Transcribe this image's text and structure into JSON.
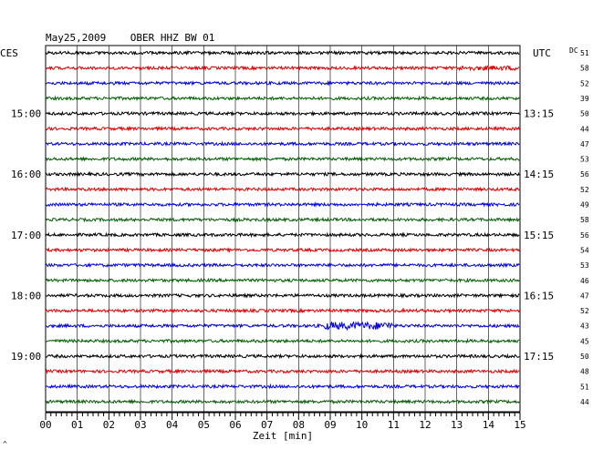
{
  "chart_data": {
    "type": "line",
    "title": "May25,2009    OBER HHZ BW 01",
    "left_timezone": "CES",
    "right_timezone": "UTC",
    "xlabel": "Zeit [min]",
    "xlim": [
      0,
      15
    ],
    "x_ticks": [
      "00",
      "01",
      "02",
      "03",
      "04",
      "05",
      "06",
      "07",
      "08",
      "09",
      "10",
      "11",
      "12",
      "13",
      "14",
      "15"
    ],
    "left_time_labels": [
      {
        "row": 4,
        "text": "15:00"
      },
      {
        "row": 8,
        "text": "16:00"
      },
      {
        "row": 12,
        "text": "17:00"
      },
      {
        "row": 16,
        "text": "18:00"
      },
      {
        "row": 20,
        "text": "19:00"
      }
    ],
    "right_time_labels": [
      {
        "row": 4,
        "text": "13:15"
      },
      {
        "row": 8,
        "text": "14:15"
      },
      {
        "row": 12,
        "text": "15:15"
      },
      {
        "row": 16,
        "text": "16:15"
      },
      {
        "row": 20,
        "text": "17:15"
      }
    ],
    "dc_label": "DC",
    "dc_values": [
      51,
      58,
      52,
      39,
      50,
      44,
      47,
      53,
      56,
      52,
      49,
      58,
      56,
      54,
      53,
      46,
      47,
      52,
      43,
      45,
      50,
      48,
      51,
      44
    ],
    "trace_colors": [
      "#000000",
      "#e00000",
      "#0000e0",
      "#006000"
    ],
    "row_count": 24,
    "grid": true,
    "corner_mark": "^"
  }
}
